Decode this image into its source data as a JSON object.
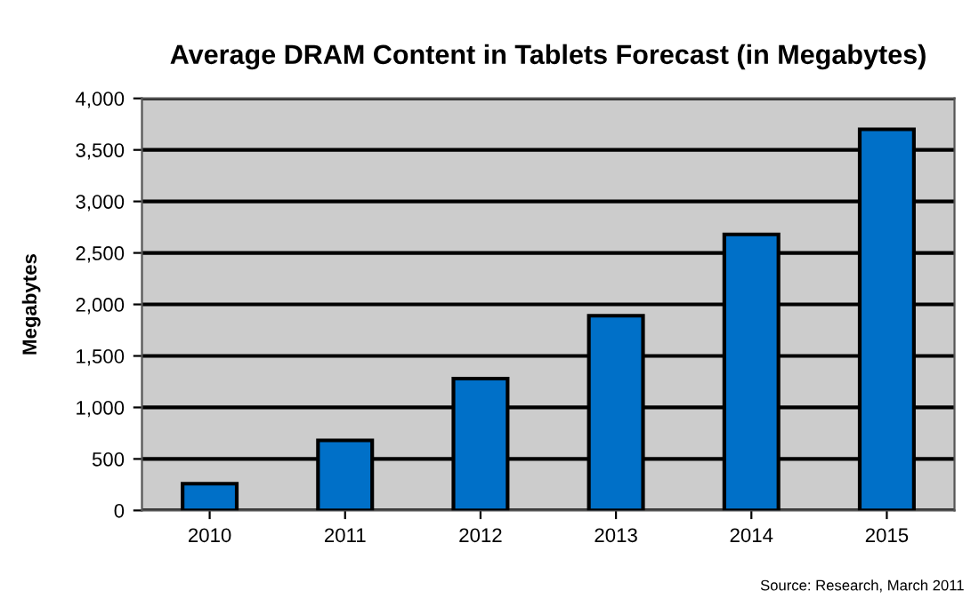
{
  "chart_data": {
    "type": "bar",
    "title": "Average DRAM Content in Tablets Forecast (in Megabytes)",
    "ylabel": "Megabytes",
    "categories": [
      "2010",
      "2011",
      "2012",
      "2013",
      "2014",
      "2015"
    ],
    "values": [
      260,
      680,
      1280,
      1890,
      2680,
      3700
    ],
    "color": "#0070c8",
    "ylim": [
      0,
      4000
    ],
    "yticks": [
      {
        "value": 0,
        "label": "0"
      },
      {
        "value": 500,
        "label": "500"
      },
      {
        "value": 1000,
        "label": "1,000"
      },
      {
        "value": 1500,
        "label": "1,500"
      },
      {
        "value": 2000,
        "label": "2,000"
      },
      {
        "value": 2500,
        "label": "2,500"
      },
      {
        "value": 3000,
        "label": "3,000"
      },
      {
        "value": 3500,
        "label": "3,500"
      },
      {
        "value": 4000,
        "label": "4,000"
      }
    ],
    "grid": "y",
    "legend": false,
    "annotations": [
      "Source: Research, March 2011"
    ]
  }
}
